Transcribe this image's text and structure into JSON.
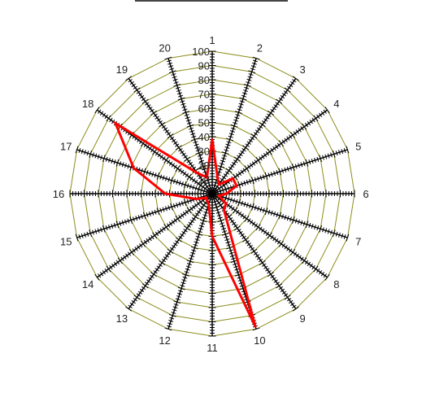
{
  "colors": {
    "grid": "#8c8c1a",
    "axis": "#000000",
    "series": "#ff0000",
    "background": "#ffffff"
  },
  "chart_data": {
    "type": "radar",
    "title": "",
    "categories": [
      "1",
      "2",
      "3",
      "4",
      "5",
      "6",
      "7",
      "8",
      "9",
      "10",
      "11",
      "12",
      "13",
      "14",
      "15",
      "16",
      "17",
      "18",
      "19",
      "20"
    ],
    "series": [
      {
        "values": [
          38,
          12,
          8,
          18,
          18,
          10,
          5,
          12,
          14,
          98,
          30,
          8,
          6,
          5,
          12,
          33,
          58,
          84,
          18,
          12
        ]
      }
    ],
    "rlim": [
      0,
      100
    ],
    "r_ticks": [
      10,
      20,
      30,
      40,
      50,
      60,
      70,
      80,
      90,
      100
    ],
    "grid": true,
    "legend": "none"
  }
}
